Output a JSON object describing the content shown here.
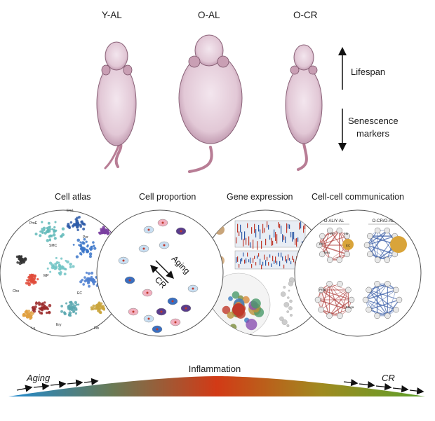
{
  "mice": [
    {
      "label": "Y-AL"
    },
    {
      "label": "O-AL"
    },
    {
      "label": "O-CR"
    }
  ],
  "arrows": {
    "up_label": "Lifespan",
    "down_label_line1": "Senescence",
    "down_label_line2": "markers"
  },
  "panels": {
    "cell_atlas": {
      "title": "Cell atlas",
      "cluster_labels": [
        "EryL",
        "PrnE",
        "SMC",
        "Per",
        "MP",
        "Cho",
        "EC",
        "Ery",
        "Ly",
        "Fib"
      ]
    },
    "cell_proportion": {
      "title": "Cell proportion",
      "aging_label": "Aging",
      "cr_label": "CR"
    },
    "gene_expression": {
      "title": "Gene expression"
    },
    "cell_communication": {
      "title": "Cell-cell communication",
      "left_header": "O-AL/Y-AL",
      "right_header": "O-CR/O-AL",
      "node_labels": [
        "MP",
        "Fib",
        "EC",
        "DC",
        "Neu",
        "PrnE",
        "Mega"
      ]
    }
  },
  "bottom": {
    "aging_label": "Aging",
    "center_label": "Inflammation",
    "cr_label": "CR"
  },
  "colors": {
    "mouse_body": "#e2c8d6",
    "mouse_shade": "#b88ea6",
    "tail": "#b87d95",
    "gradient_left": "#1f8ad0",
    "gradient_mid": "#d23a16",
    "gradient_right": "#5ba02a"
  }
}
